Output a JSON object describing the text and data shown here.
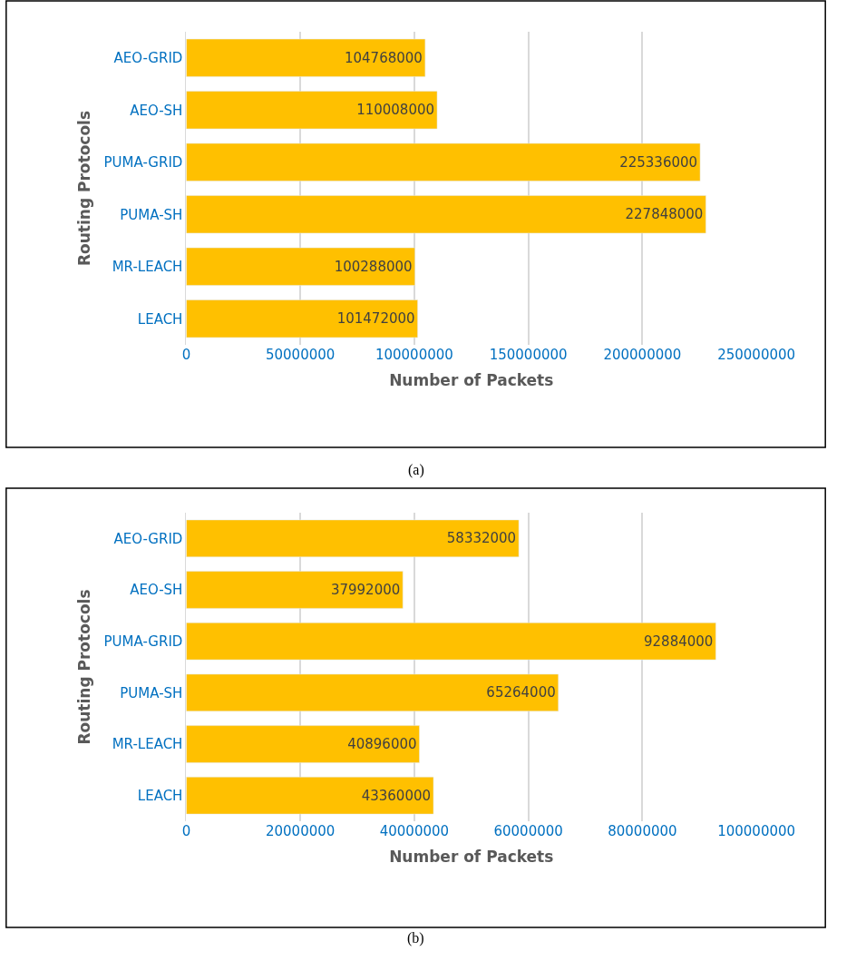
{
  "chart_data": [
    {
      "type": "bar",
      "orientation": "horizontal",
      "xlabel": "Number of Packets",
      "ylabel": "Routing Protocols",
      "categories": [
        "AEO-GRID",
        "AEO-SH",
        "PUMA-GRID",
        "PUMA-SH",
        "MR-LEACH",
        "LEACH"
      ],
      "values": [
        104768000,
        110008000,
        225336000,
        227848000,
        100288000,
        101472000
      ],
      "color": "#ffc000",
      "xlim": [
        0,
        250000000
      ],
      "xticks": [
        0,
        50000000,
        100000000,
        150000000,
        200000000,
        250000000
      ],
      "grid": "x",
      "data_labels": true,
      "annotations": [
        "(a)"
      ]
    },
    {
      "type": "bar",
      "orientation": "horizontal",
      "xlabel": "Number of Packets",
      "ylabel": "Routing Protocols",
      "categories": [
        "AEO-GRID",
        "AEO-SH",
        "PUMA-GRID",
        "PUMA-SH",
        "MR-LEACH",
        "LEACH"
      ],
      "values": [
        58332000,
        37992000,
        92884000,
        65264000,
        40896000,
        43360000
      ],
      "color": "#ffc000",
      "xlim": [
        0,
        100000000
      ],
      "xticks": [
        0,
        20000000,
        40000000,
        60000000,
        80000000,
        100000000
      ],
      "grid": "x",
      "data_labels": true,
      "annotations": [
        "(b)"
      ]
    }
  ]
}
